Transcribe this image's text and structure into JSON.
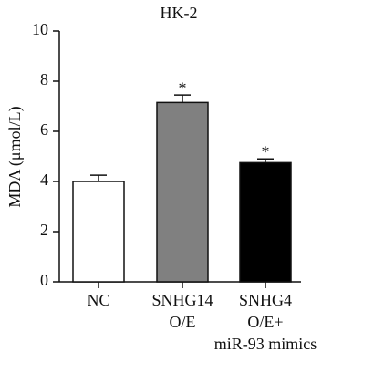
{
  "chart_data": {
    "type": "bar",
    "title": "HK-2",
    "y_label": "MDA (μmol/L)",
    "categories": [
      [
        "NC"
      ],
      [
        "SNHG14",
        "O/E"
      ],
      [
        "SNHG4",
        "O/E+",
        "miR-93 mimics"
      ]
    ],
    "values": [
      4.0,
      7.15,
      4.75
    ],
    "errors": [
      0.25,
      0.3,
      0.15
    ],
    "significance": [
      null,
      "*",
      "*"
    ],
    "colors": [
      "#ffffff",
      "#808080",
      "#000000"
    ],
    "ylim": [
      0,
      10
    ],
    "yticks": [
      0,
      2,
      4,
      6,
      8,
      10
    ]
  }
}
